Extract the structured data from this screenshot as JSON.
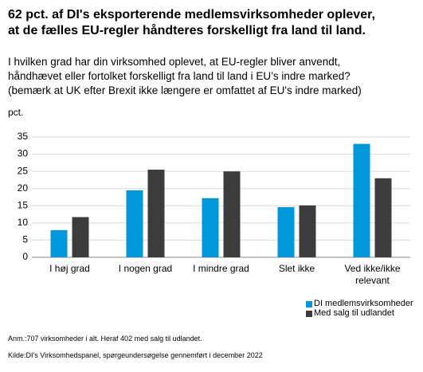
{
  "chart_data": {
    "type": "bar",
    "title": [
      "62 pct. af DI's eksporterende medlemsvirksomheder oplever,",
      "at de fælles EU-regler håndteres forskelligt fra land til land."
    ],
    "subtitle": [
      "I hvilken grad har din virksomhed oplevet, at EU-regler bliver anvendt,",
      "håndhævet eller fortolket forskelligt fra land til land i EU’s indre marked?",
      "(bemærk at UK efter Brexit ikke længere er omfattet af EU's indre marked)"
    ],
    "y_label": "pct.",
    "categories": [
      "I høj grad",
      "I nogen grad",
      "I mindre grad",
      "Slet ikke",
      "Ved ikke/ikke relevant"
    ],
    "series": [
      {
        "name": "DI medlemsvirksomheder",
        "color": "#0097db",
        "values": [
          7.9,
          19.5,
          17.2,
          14.6,
          33
        ]
      },
      {
        "name": "Med salg til udlandet",
        "color": "#3c3c3c",
        "values": [
          11.7,
          25.5,
          25,
          15.1,
          23
        ]
      }
    ],
    "ylim": [
      0,
      35
    ],
    "yticks": [
      0,
      5,
      10,
      15,
      20,
      25,
      30,
      35
    ],
    "grid": true,
    "notes": [
      "Anm.:707 virksomheder i alt. Heraf 402 med salg til udlandet.",
      "Kilde:DI's Virksomhedspanel, spørgeundersøgelse gennemført i december 2022"
    ]
  }
}
